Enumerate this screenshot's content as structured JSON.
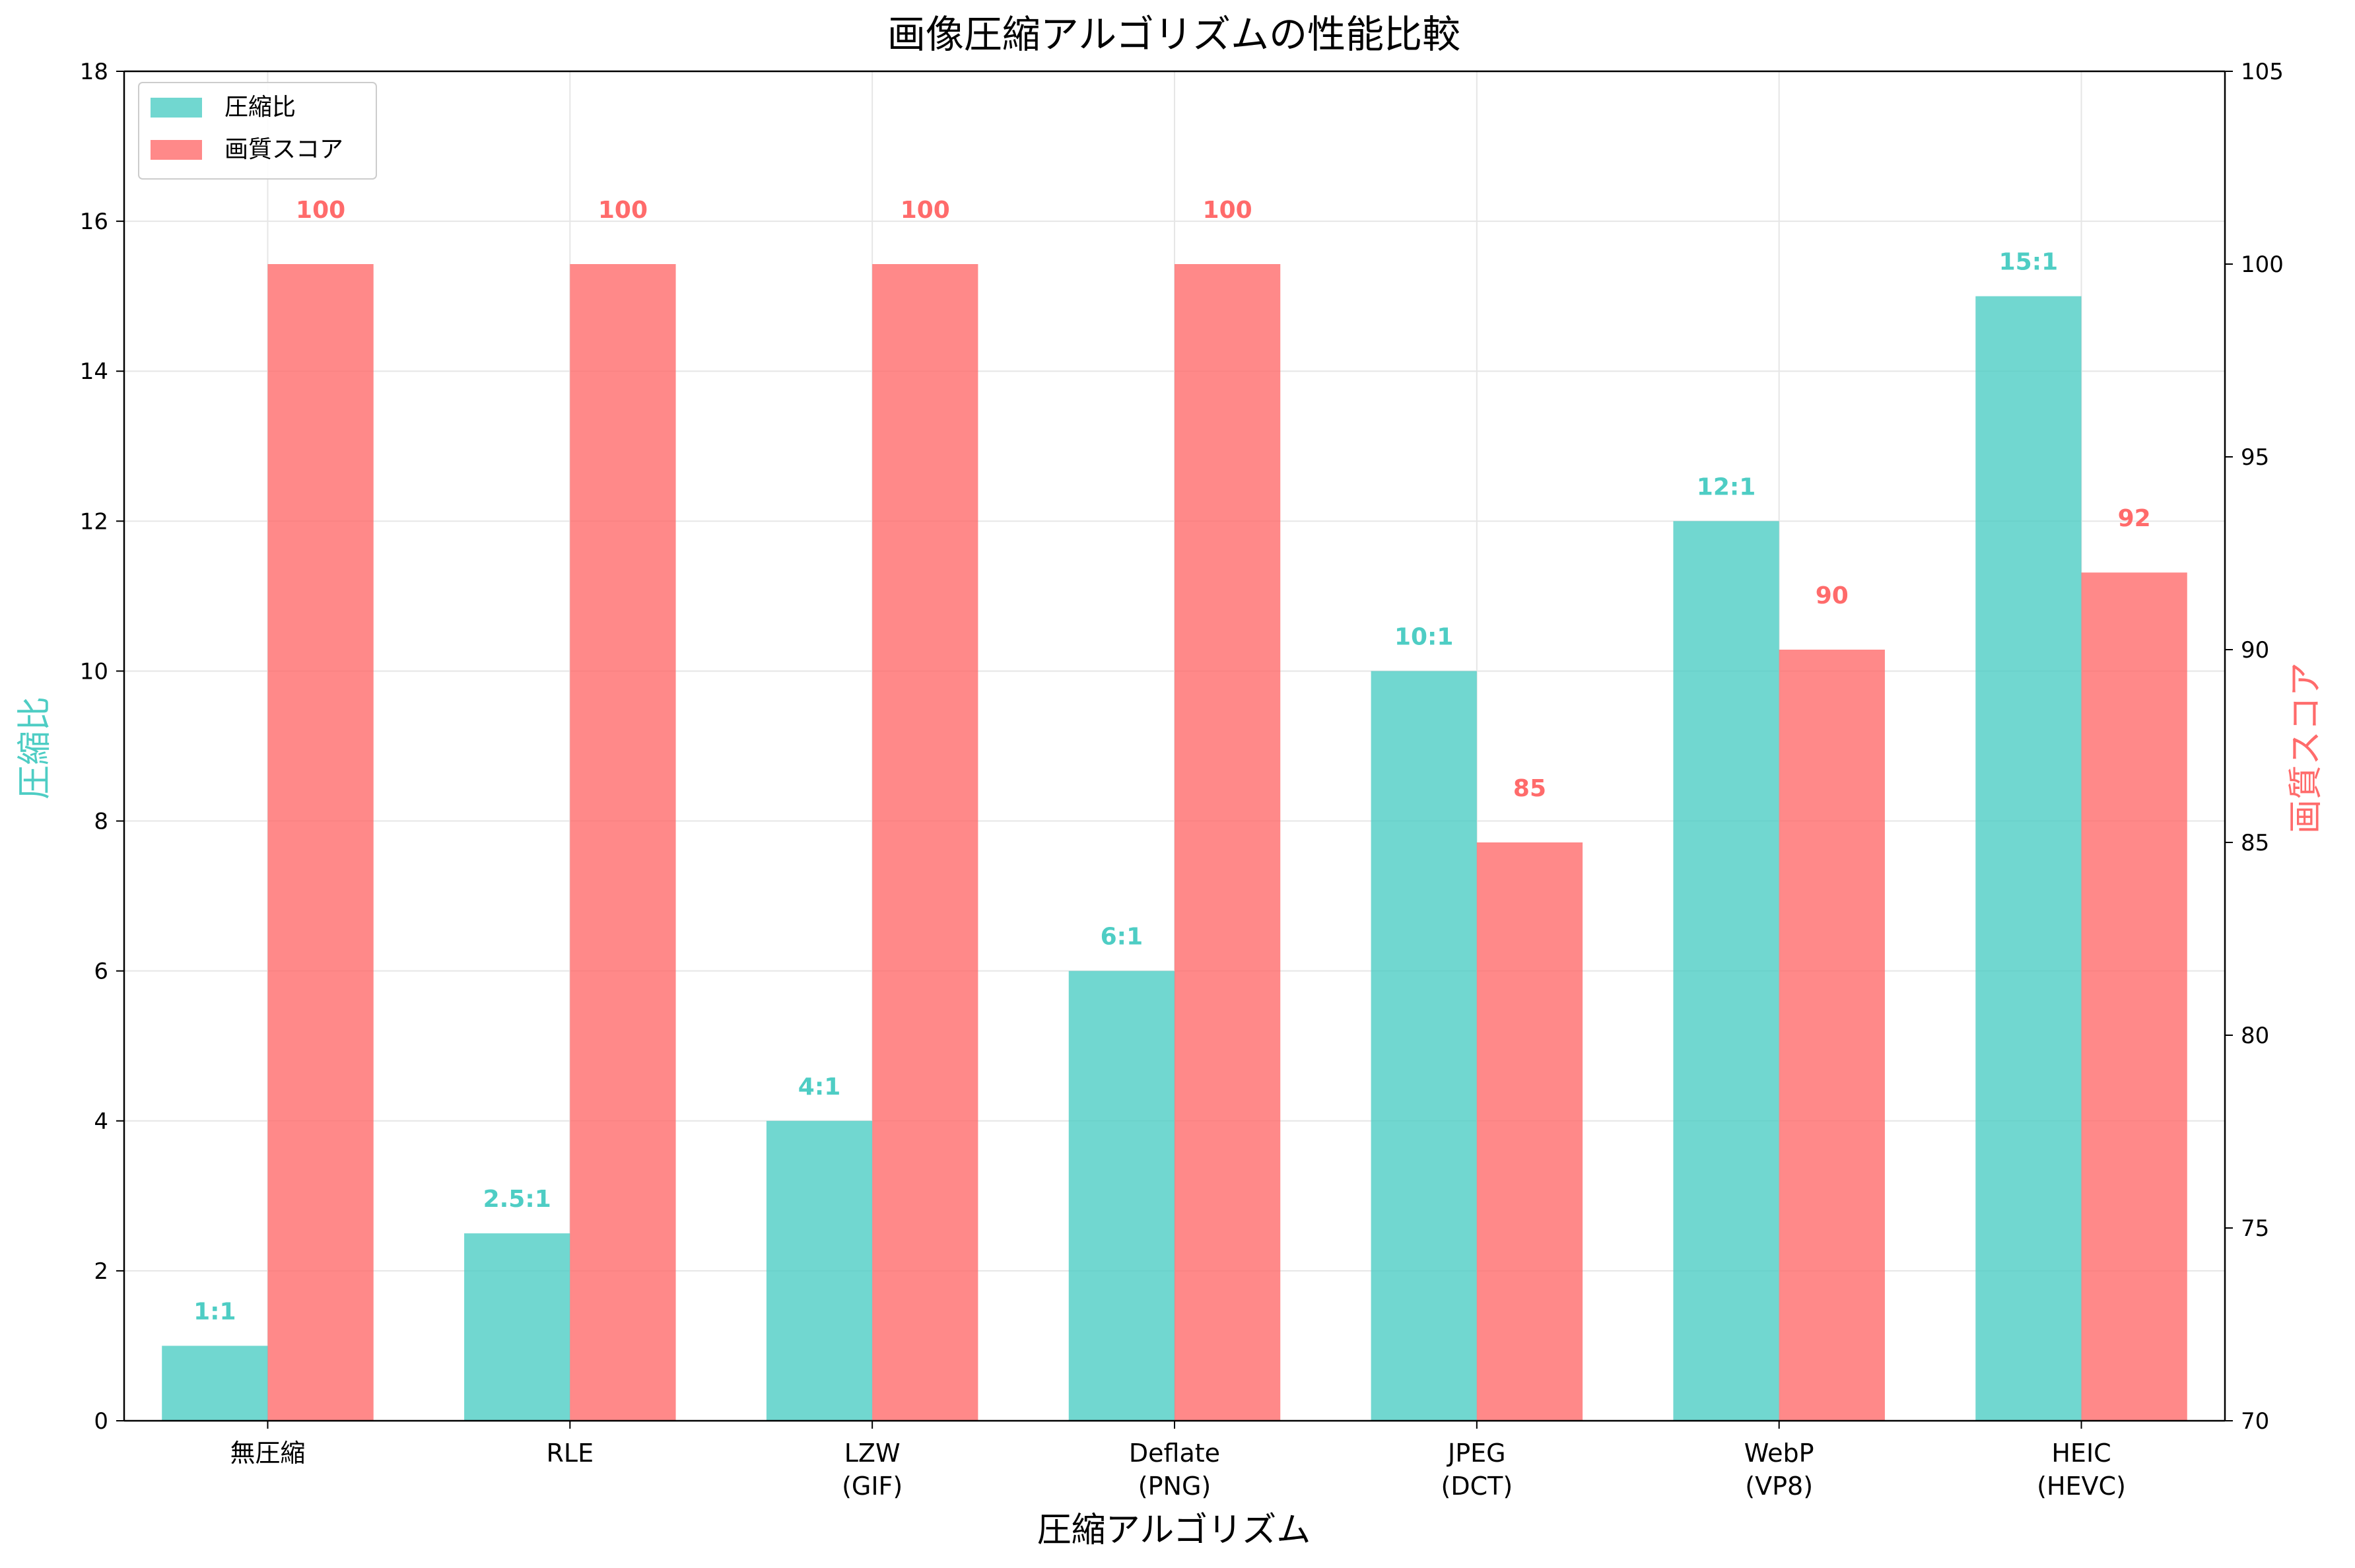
{
  "chart_data": {
    "type": "bar",
    "title": "画像圧縮アルゴリズムの性能比較",
    "xlabel": "圧縮アルゴリズム",
    "ylabel_left": "圧縮比",
    "ylabel_right": "画質スコア",
    "categories": [
      "無圧縮",
      "RLE",
      "LZW\n(GIF)",
      "Deflate\n(PNG)",
      "JPEG\n(DCT)",
      "WebP\n(VP8)",
      "HEIC\n(HEVC)"
    ],
    "series": [
      {
        "name": "圧縮比",
        "axis": "left",
        "color": "#4ECDC4",
        "values": [
          1,
          2.5,
          4,
          6,
          10,
          12,
          15
        ],
        "labels": [
          "1:1",
          "2.5:1",
          "4:1",
          "6:1",
          "10:1",
          "12:1",
          "15:1"
        ]
      },
      {
        "name": "画質スコア",
        "axis": "right",
        "color": "#FF6B6B",
        "values": [
          100,
          100,
          100,
          100,
          85,
          90,
          92
        ],
        "labels": [
          "100",
          "100",
          "100",
          "100",
          "85",
          "90",
          "92"
        ]
      }
    ],
    "ylim_left": [
      0,
      18
    ],
    "yticks_left": [
      0,
      2,
      4,
      6,
      8,
      10,
      12,
      14,
      16,
      18
    ],
    "ylim_right": [
      70,
      105
    ],
    "yticks_right": [
      70,
      75,
      80,
      85,
      90,
      95,
      100,
      105
    ],
    "grid": true,
    "legend_position": "top-left"
  }
}
